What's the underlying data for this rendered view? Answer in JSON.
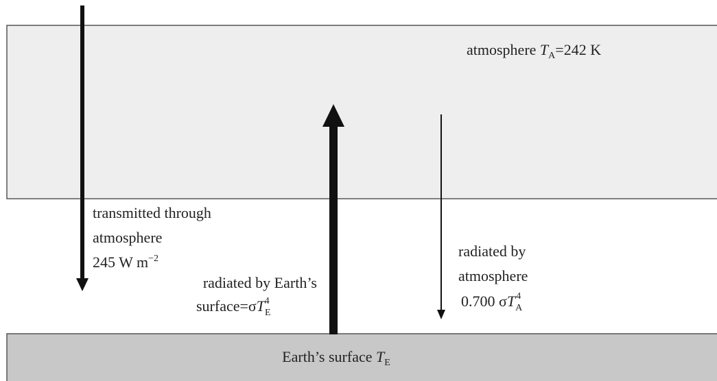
{
  "atmosphere_label": {
    "prefix": "atmosphere ",
    "symbol": "T",
    "subscript": "A",
    "suffix": "=242 K"
  },
  "transmitted": {
    "lines": [
      "transmitted through",
      "atmosphere"
    ],
    "flux": {
      "text": "245 W m",
      "exponent": "−2"
    }
  },
  "surface_emission": {
    "line1": "radiated by Earth’s",
    "prefix": "surface=σ",
    "symbol": "T",
    "subscript": "E",
    "exponent": "4"
  },
  "atmosphere_emission": {
    "lines": [
      "radiated by",
      "atmosphere"
    ],
    "prefix": "0.700 σ",
    "symbol": "T",
    "subscript": "A",
    "exponent": "4"
  },
  "surface_label": {
    "prefix": "Earth’s surface ",
    "symbol": "T",
    "subscript": "E"
  }
}
